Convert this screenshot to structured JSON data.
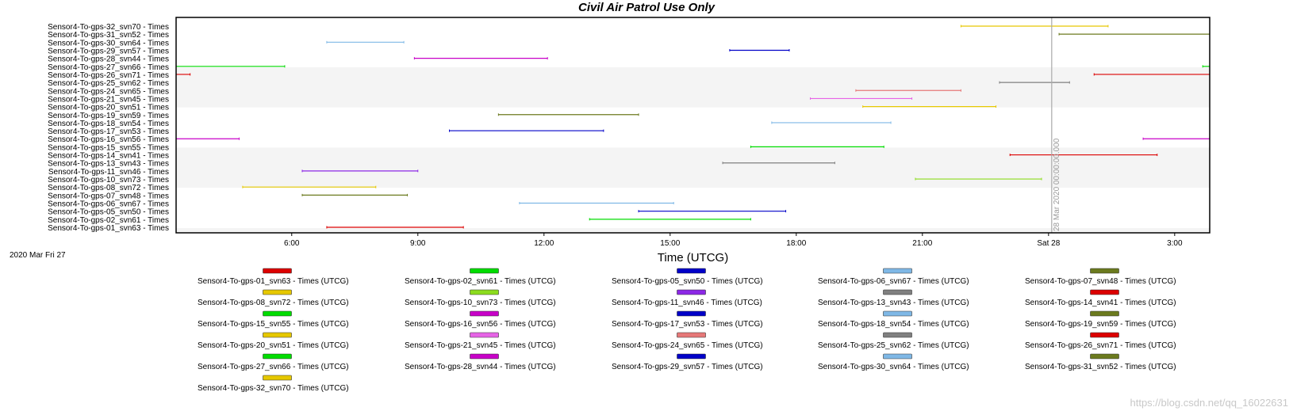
{
  "chart_data": {
    "type": "gantt",
    "title": "Civil Air Patrol Use Only",
    "xlabel": "Time (UTCG)",
    "start_date_label": "2020 Mar Fri 27",
    "x_range": [
      "2020-03-27T03:15",
      "2020-03-28T03:50"
    ],
    "x_ticks": [
      {
        "t": "2020-03-27T06:00",
        "label": "6:00"
      },
      {
        "t": "2020-03-27T09:00",
        "label": "9:00"
      },
      {
        "t": "2020-03-27T12:00",
        "label": "12:00"
      },
      {
        "t": "2020-03-27T15:00",
        "label": "15:00"
      },
      {
        "t": "2020-03-27T18:00",
        "label": "18:00"
      },
      {
        "t": "2020-03-27T21:00",
        "label": "21:00"
      },
      {
        "t": "2020-03-28T00:00",
        "label": "Sat 28"
      },
      {
        "t": "2020-03-28T03:00",
        "label": "3:00"
      }
    ],
    "cursor": {
      "t": "2020-03-28T00:00",
      "label": "28 Mar 2020 00:00:00.000"
    },
    "row_shading": "alternating bands of 5 rows",
    "rows": [
      {
        "label": "Sensor4-To-gps-32_svn70 - Times",
        "color": "#e6c800",
        "intervals": [
          [
            "2020-03-27T21:55",
            "2020-03-28T01:25"
          ]
        ]
      },
      {
        "label": "Sensor4-To-gps-31_svn52 - Times",
        "color": "#6b7a1e",
        "intervals": [
          [
            "2020-03-28T00:15",
            "2020-03-28T03:50"
          ]
        ]
      },
      {
        "label": "Sensor4-To-gps-30_svn64 - Times",
        "color": "#7fb8e6",
        "intervals": [
          [
            "2020-03-27T06:50",
            "2020-03-27T08:40"
          ]
        ]
      },
      {
        "label": "Sensor4-To-gps-29_svn57 - Times",
        "color": "#0000c8",
        "intervals": [
          [
            "2020-03-27T16:25",
            "2020-03-27T17:50"
          ]
        ]
      },
      {
        "label": "Sensor4-To-gps-28_svn44 - Times",
        "color": "#c800c8",
        "intervals": [
          [
            "2020-03-27T08:55",
            "2020-03-27T12:05"
          ]
        ]
      },
      {
        "label": "Sensor4-To-gps-27_svn66 - Times",
        "color": "#00dc00",
        "intervals": [
          [
            "2020-03-27T03:15",
            "2020-03-27T05:50"
          ],
          [
            "2020-03-28T03:40",
            "2020-03-28T03:50"
          ]
        ]
      },
      {
        "label": "Sensor4-To-gps-26_svn71 - Times",
        "color": "#dc0000",
        "intervals": [
          [
            "2020-03-27T03:15",
            "2020-03-27T03:35"
          ],
          [
            "2020-03-28T01:05",
            "2020-03-28T03:50"
          ]
        ]
      },
      {
        "label": "Sensor4-To-gps-25_svn62 - Times",
        "color": "#808080",
        "intervals": [
          [
            "2020-03-27T22:50",
            "2020-03-28T00:30"
          ]
        ]
      },
      {
        "label": "Sensor4-To-gps-24_svn65 - Times",
        "color": "#e67878",
        "intervals": [
          [
            "2020-03-27T19:25",
            "2020-03-27T21:55"
          ]
        ]
      },
      {
        "label": "Sensor4-To-gps-21_svn45 - Times",
        "color": "#e664e6",
        "intervals": [
          [
            "2020-03-27T18:20",
            "2020-03-27T20:45"
          ]
        ]
      },
      {
        "label": "Sensor4-To-gps-20_svn51 - Times",
        "color": "#e6c800",
        "intervals": [
          [
            "2020-03-27T19:35",
            "2020-03-27T22:45"
          ]
        ]
      },
      {
        "label": "Sensor4-To-gps-19_svn59 - Times",
        "color": "#6b7a1e",
        "intervals": [
          [
            "2020-03-27T10:55",
            "2020-03-27T14:15"
          ]
        ]
      },
      {
        "label": "Sensor4-To-gps-18_svn54 - Times",
        "color": "#7fb8e6",
        "intervals": [
          [
            "2020-03-27T17:25",
            "2020-03-27T20:15"
          ]
        ]
      },
      {
        "label": "Sensor4-To-gps-17_svn53 - Times",
        "color": "#0000c8",
        "intervals": [
          [
            "2020-03-27T09:45",
            "2020-03-27T13:25"
          ]
        ]
      },
      {
        "label": "Sensor4-To-gps-16_svn56 - Times",
        "color": "#c800c8",
        "intervals": [
          [
            "2020-03-27T03:15",
            "2020-03-27T04:45"
          ],
          [
            "2020-03-28T02:15",
            "2020-03-28T03:50"
          ]
        ]
      },
      {
        "label": "Sensor4-To-gps-15_svn55 - Times",
        "color": "#00dc00",
        "intervals": [
          [
            "2020-03-27T16:55",
            "2020-03-27T20:05"
          ]
        ]
      },
      {
        "label": "Sensor4-To-gps-14_svn41 - Times",
        "color": "#dc0000",
        "intervals": [
          [
            "2020-03-27T23:05",
            "2020-03-28T02:35"
          ]
        ]
      },
      {
        "label": "Sensor4-To-gps-13_svn43 - Times",
        "color": "#808080",
        "intervals": [
          [
            "2020-03-27T16:15",
            "2020-03-27T18:55"
          ]
        ]
      },
      {
        "label": "Sensor4-To-gps-11_svn46 - Times",
        "color": "#8c28e6",
        "intervals": [
          [
            "2020-03-27T06:15",
            "2020-03-27T09:00"
          ]
        ]
      },
      {
        "label": "Sensor4-To-gps-10_svn73 - Times",
        "color": "#8cdc1e",
        "intervals": [
          [
            "2020-03-27T20:50",
            "2020-03-27T23:50"
          ]
        ]
      },
      {
        "label": "Sensor4-To-gps-08_svn72 - Times",
        "color": "#e6c800",
        "intervals": [
          [
            "2020-03-27T04:50",
            "2020-03-27T08:00"
          ]
        ]
      },
      {
        "label": "Sensor4-To-gps-07_svn48 - Times",
        "color": "#6b7a1e",
        "intervals": [
          [
            "2020-03-27T06:15",
            "2020-03-27T08:45"
          ]
        ]
      },
      {
        "label": "Sensor4-To-gps-06_svn67 - Times",
        "color": "#7fb8e6",
        "intervals": [
          [
            "2020-03-27T11:25",
            "2020-03-27T15:05"
          ]
        ]
      },
      {
        "label": "Sensor4-To-gps-05_svn50 - Times",
        "color": "#0000c8",
        "intervals": [
          [
            "2020-03-27T14:15",
            "2020-03-27T17:45"
          ]
        ]
      },
      {
        "label": "Sensor4-To-gps-02_svn61 - Times",
        "color": "#00dc00",
        "intervals": [
          [
            "2020-03-27T13:05",
            "2020-03-27T16:55"
          ]
        ]
      },
      {
        "label": "Sensor4-To-gps-01_svn63 - Times",
        "color": "#dc0000",
        "intervals": [
          [
            "2020-03-27T06:50",
            "2020-03-27T10:05"
          ]
        ]
      }
    ],
    "legend": [
      {
        "label": "Sensor4-To-gps-01_svn63 - Times (UTCG)",
        "color": "#dc0000"
      },
      {
        "label": "Sensor4-To-gps-02_svn61 - Times (UTCG)",
        "color": "#00dc00"
      },
      {
        "label": "Sensor4-To-gps-05_svn50 - Times (UTCG)",
        "color": "#0000c8"
      },
      {
        "label": "Sensor4-To-gps-06_svn67 - Times (UTCG)",
        "color": "#7fb8e6"
      },
      {
        "label": "Sensor4-To-gps-07_svn48 - Times (UTCG)",
        "color": "#6b7a1e"
      },
      {
        "label": "Sensor4-To-gps-08_svn72 - Times (UTCG)",
        "color": "#e6c800"
      },
      {
        "label": "Sensor4-To-gps-10_svn73 - Times (UTCG)",
        "color": "#8cdc1e"
      },
      {
        "label": "Sensor4-To-gps-11_svn46 - Times (UTCG)",
        "color": "#8c28e6"
      },
      {
        "label": "Sensor4-To-gps-13_svn43 - Times (UTCG)",
        "color": "#808080"
      },
      {
        "label": "Sensor4-To-gps-14_svn41 - Times (UTCG)",
        "color": "#dc0000"
      },
      {
        "label": "Sensor4-To-gps-15_svn55 - Times (UTCG)",
        "color": "#00dc00"
      },
      {
        "label": "Sensor4-To-gps-16_svn56 - Times (UTCG)",
        "color": "#c800c8"
      },
      {
        "label": "Sensor4-To-gps-17_svn53 - Times (UTCG)",
        "color": "#0000c8"
      },
      {
        "label": "Sensor4-To-gps-18_svn54 - Times (UTCG)",
        "color": "#7fb8e6"
      },
      {
        "label": "Sensor4-To-gps-19_svn59 - Times (UTCG)",
        "color": "#6b7a1e"
      },
      {
        "label": "Sensor4-To-gps-20_svn51 - Times (UTCG)",
        "color": "#e6c800"
      },
      {
        "label": "Sensor4-To-gps-21_svn45 - Times (UTCG)",
        "color": "#e664e6"
      },
      {
        "label": "Sensor4-To-gps-24_svn65 - Times (UTCG)",
        "color": "#e67878"
      },
      {
        "label": "Sensor4-To-gps-25_svn62 - Times (UTCG)",
        "color": "#808080"
      },
      {
        "label": "Sensor4-To-gps-26_svn71 - Times (UTCG)",
        "color": "#dc0000"
      },
      {
        "label": "Sensor4-To-gps-27_svn66 - Times (UTCG)",
        "color": "#00dc00"
      },
      {
        "label": "Sensor4-To-gps-28_svn44 - Times (UTCG)",
        "color": "#c800c8"
      },
      {
        "label": "Sensor4-To-gps-29_svn57 - Times (UTCG)",
        "color": "#0000c8"
      },
      {
        "label": "Sensor4-To-gps-30_svn64 - Times (UTCG)",
        "color": "#7fb8e6"
      },
      {
        "label": "Sensor4-To-gps-31_svn52 - Times (UTCG)",
        "color": "#6b7a1e"
      },
      {
        "label": "Sensor4-To-gps-32_svn70 - Times (UTCG)",
        "color": "#e6c800"
      }
    ]
  },
  "watermark": "https://blog.csdn.net/qq_16022631"
}
